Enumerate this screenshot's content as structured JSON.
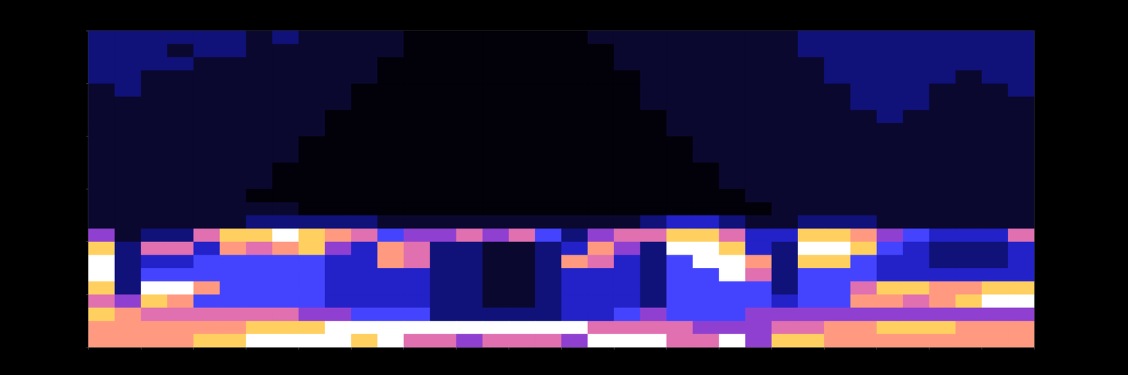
{
  "chart_data": {
    "type": "heatmap",
    "xlim": [
      0,
      18
    ],
    "xticks": [
      0,
      1,
      2,
      3,
      4,
      5,
      6,
      7,
      8,
      9,
      10,
      11,
      12,
      13,
      14,
      15,
      16,
      17,
      18
    ],
    "ylim": [
      0,
      6
    ],
    "yticks": [
      0,
      1,
      2,
      3,
      4,
      5,
      6
    ],
    "tick_labels": false,
    "grid": false,
    "color_range": [
      0,
      9
    ],
    "cells": [
      [
        2,
        2,
        2,
        2,
        2,
        2,
        1,
        2,
        1,
        1,
        1,
        1,
        0,
        0,
        0,
        0,
        0,
        0,
        0,
        1,
        1,
        1,
        1,
        1,
        1,
        1,
        1,
        2,
        2,
        2,
        2,
        2,
        2,
        2,
        2,
        2
      ],
      [
        2,
        2,
        2,
        1,
        2,
        2,
        1,
        1,
        1,
        1,
        1,
        1,
        0,
        0,
        0,
        0,
        0,
        0,
        0,
        0,
        1,
        1,
        1,
        1,
        1,
        1,
        1,
        2,
        2,
        2,
        2,
        2,
        2,
        2,
        2,
        2
      ],
      [
        2,
        2,
        2,
        2,
        1,
        1,
        1,
        1,
        1,
        1,
        1,
        0,
        0,
        0,
        0,
        0,
        0,
        0,
        0,
        0,
        1,
        1,
        1,
        1,
        1,
        1,
        1,
        1,
        2,
        2,
        2,
        2,
        2,
        2,
        2,
        2
      ],
      [
        2,
        2,
        1,
        1,
        1,
        1,
        1,
        1,
        1,
        1,
        1,
        0,
        0,
        0,
        0,
        0,
        0,
        0,
        0,
        0,
        0,
        1,
        1,
        1,
        1,
        1,
        1,
        1,
        2,
        2,
        2,
        2,
        2,
        1,
        2,
        2
      ],
      [
        1,
        2,
        1,
        1,
        1,
        1,
        1,
        1,
        1,
        1,
        0,
        0,
        0,
        0,
        0,
        0,
        0,
        0,
        0,
        0,
        0,
        1,
        1,
        1,
        1,
        1,
        1,
        1,
        1,
        2,
        2,
        2,
        1,
        1,
        1,
        2
      ],
      [
        1,
        1,
        1,
        1,
        1,
        1,
        1,
        1,
        1,
        1,
        0,
        0,
        0,
        0,
        0,
        0,
        0,
        0,
        0,
        0,
        0,
        1,
        1,
        1,
        1,
        1,
        1,
        1,
        1,
        2,
        2,
        2,
        1,
        1,
        1,
        1
      ],
      [
        1,
        1,
        1,
        1,
        1,
        1,
        1,
        1,
        1,
        0,
        0,
        0,
        0,
        0,
        0,
        0,
        0,
        0,
        0,
        0,
        0,
        0,
        1,
        1,
        1,
        1,
        1,
        1,
        1,
        1,
        2,
        1,
        1,
        1,
        1,
        1
      ],
      [
        1,
        1,
        1,
        1,
        1,
        1,
        1,
        1,
        1,
        0,
        0,
        0,
        0,
        0,
        0,
        0,
        0,
        0,
        0,
        0,
        0,
        0,
        1,
        1,
        1,
        1,
        1,
        1,
        1,
        1,
        1,
        1,
        1,
        1,
        1,
        1
      ],
      [
        1,
        1,
        1,
        1,
        1,
        1,
        1,
        1,
        0,
        0,
        0,
        0,
        0,
        0,
        0,
        0,
        0,
        0,
        0,
        0,
        0,
        0,
        0,
        1,
        1,
        1,
        1,
        1,
        1,
        1,
        1,
        1,
        1,
        1,
        1,
        1
      ],
      [
        1,
        1,
        1,
        1,
        1,
        1,
        1,
        1,
        0,
        0,
        0,
        0,
        0,
        0,
        0,
        0,
        0,
        0,
        0,
        0,
        0,
        0,
        0,
        1,
        1,
        1,
        1,
        1,
        1,
        1,
        1,
        1,
        1,
        1,
        1,
        1
      ],
      [
        1,
        1,
        1,
        1,
        1,
        1,
        1,
        0,
        0,
        0,
        0,
        0,
        0,
        0,
        0,
        0,
        0,
        0,
        0,
        0,
        0,
        0,
        0,
        0,
        1,
        1,
        1,
        1,
        1,
        1,
        1,
        1,
        1,
        1,
        1,
        1
      ],
      [
        1,
        1,
        1,
        1,
        1,
        1,
        1,
        0,
        0,
        0,
        0,
        0,
        0,
        0,
        0,
        0,
        0,
        0,
        0,
        0,
        0,
        0,
        0,
        0,
        1,
        1,
        1,
        1,
        1,
        1,
        1,
        1,
        1,
        1,
        1,
        1
      ],
      [
        1,
        1,
        1,
        1,
        1,
        1,
        0,
        0,
        0,
        0,
        0,
        0,
        0,
        0,
        0,
        0,
        0,
        0,
        0,
        0,
        0,
        0,
        0,
        0,
        0,
        1,
        1,
        1,
        1,
        1,
        1,
        1,
        1,
        1,
        1,
        1
      ],
      [
        1,
        1,
        1,
        1,
        1,
        1,
        1,
        1,
        0,
        0,
        0,
        0,
        0,
        0,
        0,
        0,
        0,
        0,
        0,
        0,
        0,
        0,
        0,
        0,
        0,
        0,
        1,
        1,
        1,
        1,
        1,
        1,
        1,
        1,
        1,
        1
      ],
      [
        1,
        1,
        1,
        1,
        1,
        1,
        2,
        2,
        2,
        2,
        2,
        1,
        1,
        1,
        1,
        1,
        1,
        1,
        1,
        1,
        1,
        2,
        3,
        3,
        2,
        1,
        1,
        2,
        2,
        2,
        1,
        1,
        1,
        1,
        1,
        1
      ],
      [
        5,
        1,
        2,
        2,
        6,
        8,
        8,
        9,
        8,
        7,
        6,
        4,
        5,
        5,
        6,
        5,
        6,
        4,
        2,
        5,
        6,
        6,
        8,
        8,
        6,
        3,
        3,
        8,
        8,
        7,
        5,
        4,
        3,
        3,
        3,
        6
      ],
      [
        8,
        2,
        6,
        6,
        3,
        7,
        6,
        7,
        8,
        5,
        3,
        7,
        6,
        2,
        2,
        1,
        1,
        2,
        3,
        7,
        5,
        2,
        9,
        9,
        8,
        3,
        2,
        9,
        9,
        8,
        4,
        3,
        2,
        2,
        2,
        3
      ],
      [
        9,
        2,
        3,
        3,
        4,
        4,
        4,
        4,
        4,
        3,
        3,
        7,
        6,
        2,
        2,
        1,
        1,
        2,
        7,
        6,
        3,
        2,
        4,
        9,
        9,
        7,
        2,
        8,
        8,
        4,
        3,
        3,
        2,
        2,
        2,
        3
      ],
      [
        9,
        2,
        4,
        4,
        4,
        4,
        4,
        4,
        4,
        3,
        3,
        3,
        3,
        2,
        2,
        1,
        1,
        2,
        3,
        3,
        3,
        2,
        4,
        4,
        9,
        6,
        2,
        4,
        4,
        4,
        3,
        3,
        3,
        3,
        3,
        3
      ],
      [
        8,
        2,
        9,
        9,
        7,
        4,
        4,
        4,
        4,
        3,
        3,
        3,
        3,
        2,
        2,
        1,
        1,
        2,
        3,
        3,
        3,
        2,
        4,
        4,
        4,
        4,
        2,
        4,
        4,
        6,
        8,
        8,
        7,
        7,
        8,
        8
      ],
      [
        6,
        5,
        8,
        7,
        4,
        4,
        4,
        4,
        4,
        3,
        3,
        3,
        3,
        2,
        2,
        1,
        1,
        2,
        3,
        3,
        3,
        2,
        4,
        4,
        4,
        4,
        3,
        4,
        4,
        7,
        7,
        6,
        7,
        8,
        9,
        9
      ],
      [
        8,
        7,
        6,
        6,
        6,
        6,
        6,
        6,
        5,
        5,
        4,
        4,
        4,
        2,
        2,
        2,
        2,
        2,
        3,
        3,
        4,
        5,
        4,
        4,
        4,
        5,
        5,
        5,
        5,
        5,
        5,
        5,
        5,
        5,
        5,
        5
      ],
      [
        7,
        7,
        7,
        7,
        7,
        7,
        8,
        8,
        8,
        9,
        9,
        9,
        9,
        9,
        9,
        9,
        9,
        9,
        9,
        6,
        6,
        6,
        6,
        5,
        5,
        5,
        6,
        6,
        7,
        7,
        8,
        8,
        8,
        7,
        7,
        7
      ],
      [
        7,
        7,
        7,
        7,
        8,
        8,
        9,
        9,
        9,
        9,
        8,
        9,
        6,
        6,
        5,
        6,
        6,
        6,
        5,
        9,
        9,
        9,
        6,
        6,
        9,
        5,
        8,
        8,
        7,
        7,
        7,
        7,
        7,
        7,
        7,
        7
      ]
    ]
  }
}
